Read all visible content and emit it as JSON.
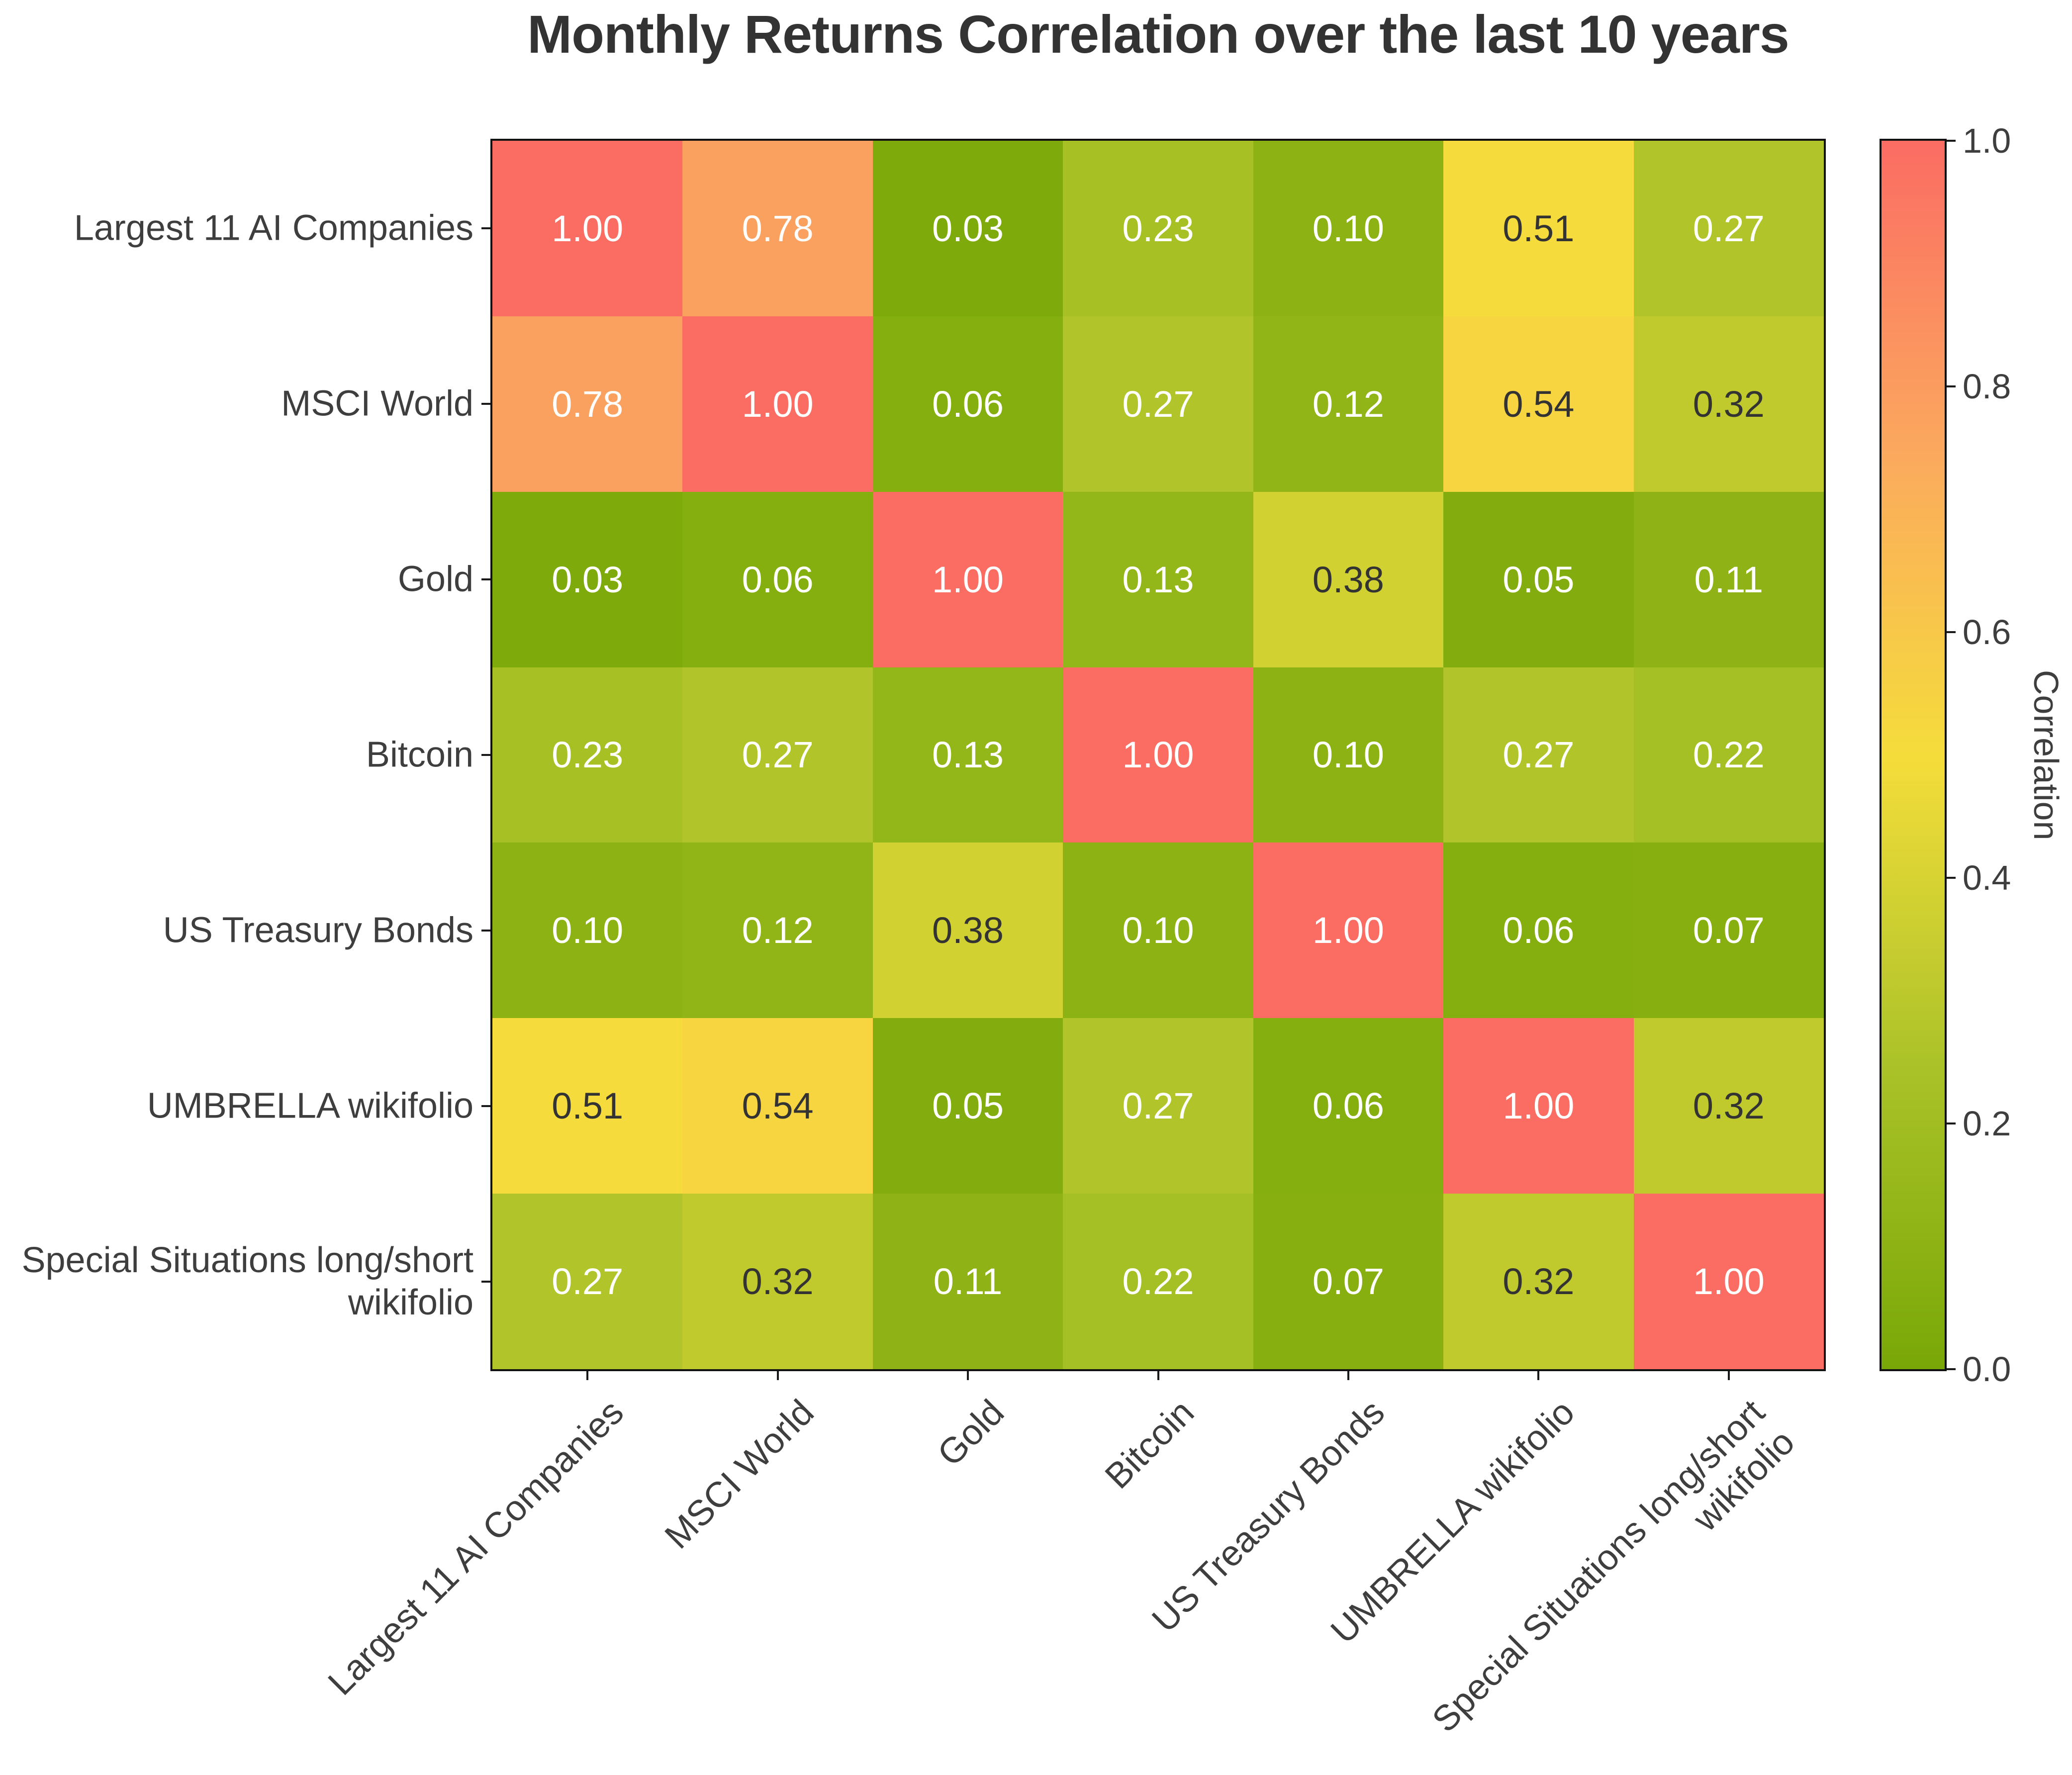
{
  "title": "Monthly Returns Correlation over the last 10 years",
  "chart_data": {
    "type": "heatmap",
    "categories": [
      "Largest 11 AI Companies",
      "MSCI World",
      "Gold",
      "Bitcoin",
      "US Treasury Bonds",
      "UMBRELLA wikifolio",
      "Special Situations long/short wikifolio"
    ],
    "matrix": [
      [
        1.0,
        0.78,
        0.03,
        0.23,
        0.1,
        0.51,
        0.27
      ],
      [
        0.78,
        1.0,
        0.06,
        0.27,
        0.12,
        0.54,
        0.32
      ],
      [
        0.03,
        0.06,
        1.0,
        0.13,
        0.38,
        0.05,
        0.11
      ],
      [
        0.23,
        0.27,
        0.13,
        1.0,
        0.1,
        0.27,
        0.22
      ],
      [
        0.1,
        0.12,
        0.38,
        0.1,
        1.0,
        0.06,
        0.07
      ],
      [
        0.51,
        0.54,
        0.05,
        0.27,
        0.06,
        1.0,
        0.32
      ],
      [
        0.27,
        0.32,
        0.11,
        0.22,
        0.07,
        0.32,
        1.0
      ]
    ],
    "value_decimals": 2,
    "vmin": 0.0,
    "vmax": 1.0,
    "colorbar_label": "Correlation",
    "colorbar_ticks": [
      "1.0",
      "0.8",
      "0.6",
      "0.4",
      "0.2",
      "0.0"
    ],
    "colormap_stops": [
      [
        0.0,
        "#79A707"
      ],
      [
        0.25,
        "#ABC328"
      ],
      [
        0.5,
        "#F5DD3B"
      ],
      [
        0.75,
        "#FBA85E"
      ],
      [
        1.0,
        "#FB6C63"
      ]
    ],
    "annotation_color_light": "#FFFFFF",
    "annotation_color_dark": "#333333",
    "axis_text_color": "#3E3E3E",
    "title_color": "#333333",
    "grid": false,
    "legend_position": "right-colorbar"
  }
}
